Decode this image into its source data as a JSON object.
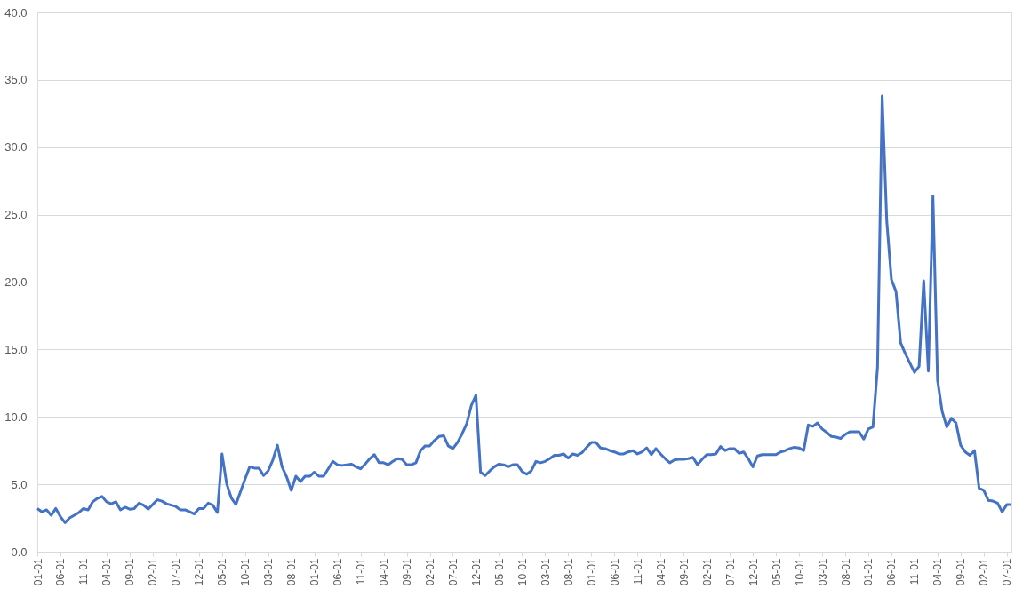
{
  "chart_data": {
    "type": "line",
    "categories": [
      "01-01",
      null,
      null,
      null,
      null,
      "06-01",
      null,
      null,
      null,
      null,
      "11-01",
      null,
      null,
      null,
      null,
      "04-01",
      null,
      null,
      null,
      null,
      "09-01",
      null,
      null,
      null,
      null,
      "02-01",
      null,
      null,
      null,
      null,
      "07-01",
      null,
      null,
      null,
      null,
      "12-01",
      null,
      null,
      null,
      null,
      "05-01",
      null,
      null,
      null,
      null,
      "10-01",
      null,
      null,
      null,
      null,
      "03-01",
      null,
      null,
      null,
      null,
      "08-01",
      null,
      null,
      null,
      null,
      "01-01",
      null,
      null,
      null,
      null,
      "06-01",
      null,
      null,
      null,
      null,
      "11-01",
      null,
      null,
      null,
      null,
      "04-01",
      null,
      null,
      null,
      null,
      "09-01",
      null,
      null,
      null,
      null,
      "02-01",
      null,
      null,
      null,
      null,
      "07-01",
      null,
      null,
      null,
      null,
      "12-01",
      null,
      null,
      null,
      null,
      "05-01",
      null,
      null,
      null,
      null,
      "10-01",
      null,
      null,
      null,
      null,
      "03-01",
      null,
      null,
      null,
      null,
      "08-01",
      null,
      null,
      null,
      null,
      "01-01",
      null,
      null,
      null,
      null,
      "06-01",
      null,
      null,
      null,
      null,
      "11-01",
      null,
      null,
      null,
      null,
      "04-01",
      null,
      null,
      null,
      null,
      "09-01",
      null,
      null,
      null,
      null,
      "02-01",
      null,
      null,
      null,
      null,
      "07-01",
      null,
      null,
      null,
      null,
      "12-01",
      null,
      null,
      null,
      null,
      "05-01",
      null,
      null,
      null,
      null,
      "10-01",
      null,
      null,
      null,
      null,
      "03-01",
      null,
      null,
      null,
      null,
      "08-01",
      null,
      null,
      null,
      null,
      "01-01",
      null,
      null,
      null,
      null,
      "06-01",
      null,
      null,
      null,
      null,
      "11-01",
      null,
      null,
      null,
      null,
      "04-01",
      null,
      null,
      null,
      null,
      "09-01",
      null,
      null,
      null,
      null,
      "02-01",
      null,
      null,
      null,
      null,
      "07-01",
      null
    ],
    "series": [
      {
        "color": "#4472c4",
        "values": [
          3.2,
          2.95,
          3.1,
          2.7,
          3.2,
          2.6,
          2.15,
          2.5,
          2.7,
          2.9,
          3.2,
          3.1,
          3.7,
          3.95,
          4.1,
          3.7,
          3.55,
          3.7,
          3.1,
          3.3,
          3.15,
          3.2,
          3.6,
          3.45,
          3.15,
          3.5,
          3.85,
          3.75,
          3.55,
          3.45,
          3.35,
          3.1,
          3.1,
          2.95,
          2.8,
          3.2,
          3.2,
          3.6,
          3.45,
          2.9,
          7.25,
          5.05,
          4.0,
          3.5,
          4.45,
          5.4,
          6.3,
          6.2,
          6.2,
          5.65,
          6.0,
          6.8,
          7.9,
          6.3,
          5.55,
          4.55,
          5.6,
          5.2,
          5.6,
          5.6,
          5.9,
          5.6,
          5.6,
          6.15,
          6.7,
          6.45,
          6.4,
          6.45,
          6.5,
          6.3,
          6.15,
          6.5,
          6.9,
          7.2,
          6.6,
          6.6,
          6.45,
          6.7,
          6.9,
          6.85,
          6.45,
          6.45,
          6.6,
          7.5,
          7.85,
          7.85,
          8.25,
          8.55,
          8.6,
          7.85,
          7.65,
          8.1,
          8.75,
          9.5,
          10.85,
          11.6,
          5.9,
          5.65,
          6.0,
          6.3,
          6.5,
          6.45,
          6.3,
          6.45,
          6.45,
          5.95,
          5.75,
          6.0,
          6.7,
          6.6,
          6.7,
          6.9,
          7.15,
          7.15,
          7.25,
          6.95,
          7.25,
          7.15,
          7.35,
          7.75,
          8.1,
          8.1,
          7.7,
          7.65,
          7.5,
          7.4,
          7.25,
          7.25,
          7.4,
          7.5,
          7.25,
          7.4,
          7.7,
          7.2,
          7.65,
          7.25,
          6.9,
          6.6,
          6.8,
          6.85,
          6.85,
          6.9,
          7.0,
          6.45,
          6.85,
          7.2,
          7.2,
          7.25,
          7.8,
          7.5,
          7.65,
          7.65,
          7.3,
          7.4,
          6.9,
          6.3,
          7.1,
          7.2,
          7.2,
          7.2,
          7.2,
          7.4,
          7.5,
          7.65,
          7.75,
          7.7,
          7.5,
          9.4,
          9.3,
          9.55,
          9.1,
          8.85,
          8.55,
          8.5,
          8.4,
          8.7,
          8.9,
          8.9,
          8.9,
          8.35,
          9.1,
          9.25,
          13.7,
          33.8,
          24.5,
          20.2,
          19.3,
          15.5,
          14.7,
          14.0,
          13.3,
          13.75,
          20.1,
          13.4,
          26.4,
          12.7,
          10.4,
          9.25,
          9.9,
          9.55,
          7.9,
          7.4,
          7.15,
          7.5,
          4.7,
          4.55,
          3.8,
          3.75,
          3.6,
          2.95,
          3.5,
          3.5
        ]
      }
    ],
    "ylim": [
      0,
      40
    ],
    "yticks": [
      {
        "value": 0,
        "label": "0.0"
      },
      {
        "value": 5,
        "label": "5.0"
      },
      {
        "value": 10,
        "label": "10.0"
      },
      {
        "value": 15,
        "label": "15.0"
      },
      {
        "value": 20,
        "label": "20.0"
      },
      {
        "value": 25,
        "label": "25.0"
      },
      {
        "value": 30,
        "label": "30.0"
      },
      {
        "value": 35,
        "label": "35.0"
      },
      {
        "value": 40,
        "label": "40.0"
      }
    ],
    "grid": "y",
    "marker": "none",
    "line_style": "solid"
  }
}
